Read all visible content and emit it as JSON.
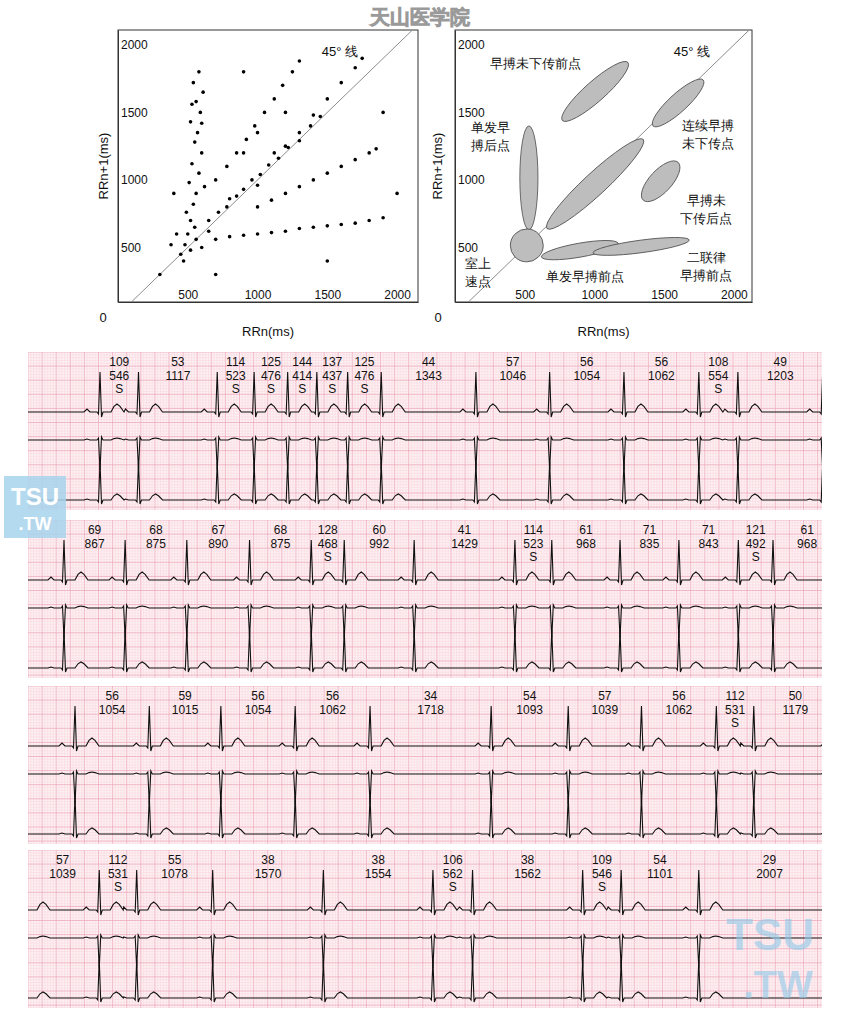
{
  "header": "天山医学院",
  "watermark": [
    "TSU",
    ".TW"
  ],
  "chart_data": [
    {
      "type": "scatter",
      "x": [
        500,
        520,
        540,
        560,
        510,
        580,
        530,
        600,
        550,
        570,
        520,
        590,
        560,
        610,
        540,
        580,
        620,
        490,
        600,
        530,
        450,
        480,
        520,
        560,
        420,
        600,
        380,
        470,
        650,
        550,
        650,
        720,
        780,
        850,
        900,
        960,
        1020,
        1080,
        1150,
        1220,
        1300,
        1380,
        1450,
        800,
        1000,
        1120,
        700,
        780,
        850,
        920,
        980,
        1050,
        1120,
        1180,
        1250,
        1300,
        900,
        1000,
        1200,
        1300,
        1400,
        1500,
        1600,
        1700,
        1750,
        1000,
        1100,
        1200,
        1300,
        1400,
        1500,
        1600,
        1700,
        1800,
        1850,
        700,
        800,
        900,
        1000,
        1100,
        1200,
        1300,
        1400,
        1500,
        1600,
        1700,
        1800,
        1900,
        1500,
        700,
        2000,
        1200,
        300,
        900,
        1900,
        400
      ],
      "values": [
        600,
        700,
        820,
        900,
        980,
        1050,
        1120,
        1200,
        1280,
        1350,
        1430,
        1500,
        1580,
        1650,
        1720,
        1800,
        950,
        760,
        1420,
        1560,
        450,
        520,
        480,
        560,
        600,
        500,
        520,
        400,
        620,
        650,
        700,
        760,
        800,
        880,
        930,
        1000,
        1040,
        1110,
        1160,
        1240,
        1290,
        1400,
        1470,
        860,
        960,
        1200,
        1000,
        1100,
        1200,
        1300,
        1400,
        1500,
        1600,
        1700,
        1800,
        1880,
        1200,
        1350,
        1250,
        1350,
        1480,
        1600,
        1720,
        1830,
        1900,
        800,
        850,
        900,
        950,
        1000,
        1050,
        1100,
        1150,
        1200,
        1230,
        560,
        580,
        590,
        600,
        610,
        620,
        640,
        650,
        660,
        670,
        680,
        700,
        720,
        400,
        300,
        900,
        1500,
        300,
        1800,
        1500,
        900
      ],
      "color": "#000000",
      "xlim": [
        0,
        2150
      ],
      "ylim": [
        96,
        2110
      ],
      "xticks": [
        500,
        1000,
        1500,
        2000
      ],
      "yticks": [
        500,
        1000,
        1500,
        2000
      ],
      "xlabel": "RRn(ms)",
      "ylabel": "RRn+1(ms)",
      "corner_label": "0",
      "annotation": "45° 线"
    },
    {
      "type": "region_diagram",
      "color": "#bdbdbd",
      "xlim": [
        0,
        2130
      ],
      "ylim": [
        96,
        2110
      ],
      "xticks": [
        500,
        1000,
        1500,
        2000
      ],
      "yticks": [
        500,
        1000,
        1500,
        2000
      ],
      "xlabel": "RRn(ms)",
      "ylabel": "RRn+1(ms)",
      "corner_label": "0",
      "annotation": "45° 线",
      "regions": [
        {
          "label_lines": [
            "早搏未下传前点"
          ],
          "from": [
            770,
            1440
          ],
          "to": [
            1240,
            1870
          ],
          "width": 145
        },
        {
          "label_lines": [
            "单发早",
            "搏后点"
          ],
          "from": [
            530,
            630
          ],
          "to": [
            530,
            1400
          ],
          "width": 130
        },
        {
          "label_lines": [
            "连续早搏",
            "未下传点"
          ],
          "from": [
            1420,
            1400
          ],
          "to": [
            1780,
            1740
          ],
          "width": 130
        },
        {
          "label_lines": [
            "早搏未",
            "下传后点"
          ],
          "from": [
            1350,
            850
          ],
          "to": [
            1600,
            1130
          ],
          "width": 160
        },
        {
          "label_lines": [
            "室上",
            "速点"
          ],
          "from": [
            430,
            430
          ],
          "to": [
            600,
            600
          ],
          "width": 235
        },
        {
          "label_lines": [
            "单发早搏前点"
          ],
          "from": [
            620,
            430
          ],
          "to": [
            1170,
            530
          ],
          "width": 100
        },
        {
          "label_lines": [
            "二联律",
            "早搏前点"
          ],
          "from": [
            990,
            460
          ],
          "to": [
            1680,
            555
          ],
          "width": 90
        },
        {
          "label_lines": [],
          "from": [
            660,
            640
          ],
          "to": [
            1350,
            1300
          ],
          "width": 160
        }
      ]
    }
  ],
  "ecg": {
    "strips": [
      {
        "rate": [
          109,
          53,
          114,
          125,
          144,
          137,
          125,
          44,
          57,
          56,
          56,
          108,
          49
        ],
        "rr": [
          546,
          1117,
          523,
          476,
          414,
          437,
          476,
          1343,
          1046,
          1054,
          1062,
          554,
          1203
        ],
        "flag": [
          "S",
          null,
          "S",
          "S",
          "S",
          "S",
          "S",
          null,
          null,
          null,
          null,
          "S",
          null
        ]
      },
      {
        "rate": [
          69,
          68,
          67,
          68,
          128,
          60,
          41,
          114,
          61,
          71,
          71,
          121,
          61
        ],
        "rr": [
          867,
          875,
          890,
          875,
          468,
          992,
          1429,
          523,
          968,
          835,
          843,
          492,
          968
        ],
        "flag": [
          null,
          null,
          null,
          null,
          "S",
          null,
          null,
          "S",
          null,
          null,
          null,
          "S",
          null
        ]
      },
      {
        "rate": [
          56,
          59,
          56,
          56,
          34,
          54,
          57,
          56,
          112,
          50
        ],
        "rr": [
          1054,
          1015,
          1054,
          1062,
          1718,
          1093,
          1039,
          1062,
          531,
          1179
        ],
        "flag": [
          null,
          null,
          null,
          null,
          null,
          null,
          null,
          null,
          "S",
          null
        ]
      },
      {
        "rate": [
          57,
          112,
          55,
          38,
          38,
          106,
          38,
          109,
          54,
          29
        ],
        "rr": [
          1039,
          531,
          1078,
          1570,
          1554,
          562,
          1562,
          546,
          1101,
          2007
        ],
        "flag": [
          null,
          "S",
          null,
          null,
          null,
          "S",
          null,
          "S",
          null,
          null
        ]
      }
    ]
  }
}
